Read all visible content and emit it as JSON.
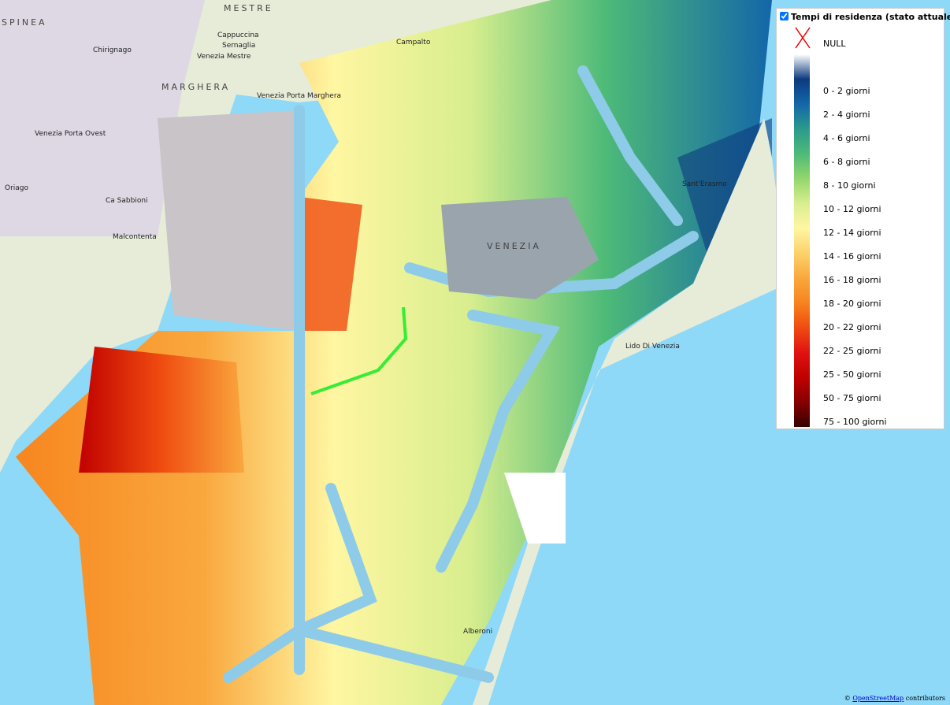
{
  "legend": {
    "title": "Tempi di residenza (stato attuale)",
    "checked": true,
    "null_label": "NULL",
    "items": [
      {
        "label": "0 - 2 giorni",
        "color": "#0b3a7e"
      },
      {
        "label": "2 - 4 giorni",
        "color": "#1466a8"
      },
      {
        "label": "4 - 6 giorni",
        "color": "#2a9a8c"
      },
      {
        "label": "6 - 8 giorni",
        "color": "#4dba78"
      },
      {
        "label": "8 - 10 giorni",
        "color": "#92d66c"
      },
      {
        "label": "10 - 12 giorni",
        "color": "#d8ee8e"
      },
      {
        "label": "12 - 14 giorni",
        "color": "#fff6a2"
      },
      {
        "label": "14 - 16 giorni",
        "color": "#fcd26a"
      },
      {
        "label": "16 - 18 giorni",
        "color": "#f9a83e"
      },
      {
        "label": "18 - 20 giorni",
        "color": "#f7841e"
      },
      {
        "label": "20 - 22 giorni",
        "color": "#f04c10"
      },
      {
        "label": "22 - 25 giorni",
        "color": "#e01212"
      },
      {
        "label": "25 - 50 giorni",
        "color": "#c00000"
      },
      {
        "label": "50 - 75 giorni",
        "color": "#860000"
      },
      {
        "label": "75 - 100 giorni",
        "color": "#380000"
      }
    ]
  },
  "places": {
    "mestre": "MESTRE",
    "marghera": "MARGHERA",
    "spinea": "SPINEA",
    "venezia_mestre": "Venezia Mestre",
    "porta_marghera": "Venezia Porta Marghera",
    "porta_ovest": "Venezia Porta Ovest",
    "cappuccina": "Cappuccina",
    "sernaglia": "Sernaglia",
    "campalto": "Campalto",
    "chirignago": "Chirignago",
    "oriago": "Oriago",
    "malcontenta": "Malcontenta",
    "ca_sabbioni": "Ca Sabbioni",
    "venezia": "VENEZIA",
    "sant_erasmo": "Sant'Erasmo",
    "lido": "Lido Di Venezia",
    "alberoni": "Alberoni"
  },
  "attribution": {
    "prefix": "©",
    "link": "OpenStreetMap",
    "suffix": "contributors"
  }
}
